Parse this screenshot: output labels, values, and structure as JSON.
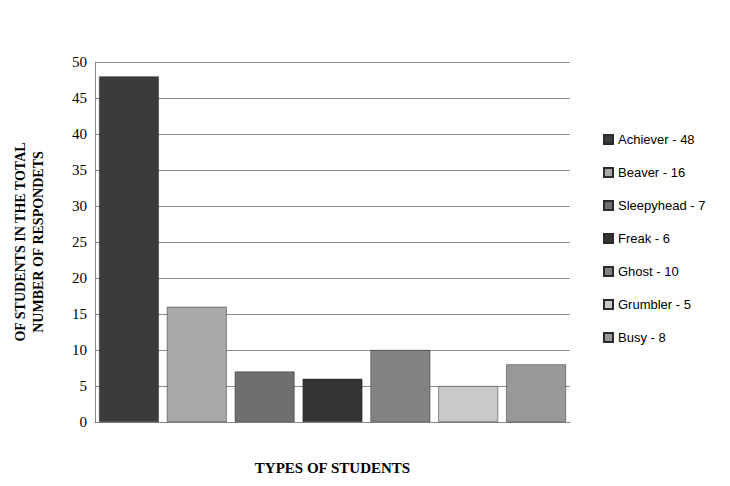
{
  "chart_data": {
    "type": "bar",
    "x_label": "TYPES OF STUDENTS",
    "y_label": "OF STUDENTS IN THE TOTAL\nNUMBER OF RESPONDETS",
    "categories": [
      "Achiever - 48",
      "Beaver - 16",
      "Sleepyhead - 7",
      "Freak - 6",
      "Ghost - 10",
      "Grumbler - 5",
      "Busy - 8"
    ],
    "values": [
      48,
      16,
      7,
      6,
      10,
      5,
      8
    ],
    "colors": [
      "#3b3b3b",
      "#a8a8a8",
      "#6f6f6f",
      "#343434",
      "#828282",
      "#c9c9c9",
      "#989898"
    ],
    "ylim": [
      0,
      50
    ],
    "yticks": [
      0,
      5,
      10,
      15,
      20,
      25,
      30,
      35,
      40,
      45,
      50
    ],
    "grid": true,
    "legend": "right",
    "tick_labels": "y"
  }
}
